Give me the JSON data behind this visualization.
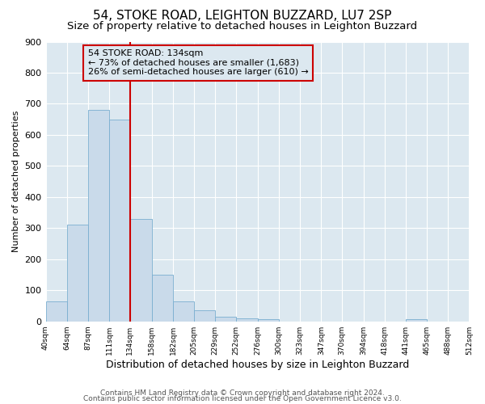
{
  "title": "54, STOKE ROAD, LEIGHTON BUZZARD, LU7 2SP",
  "subtitle": "Size of property relative to detached houses in Leighton Buzzard",
  "xlabel": "Distribution of detached houses by size in Leighton Buzzard",
  "ylabel": "Number of detached properties",
  "bin_edges": [
    40,
    64,
    87,
    111,
    134,
    158,
    182,
    205,
    229,
    252,
    276,
    300,
    323,
    347,
    370,
    394,
    418,
    441,
    465,
    488,
    512
  ],
  "bar_heights": [
    63,
    310,
    680,
    650,
    330,
    150,
    63,
    35,
    15,
    10,
    8,
    0,
    0,
    0,
    0,
    0,
    0,
    8,
    0,
    0
  ],
  "bar_color": "#c9daea",
  "bar_edgecolor": "#7aaed0",
  "property_line_x": 134,
  "property_line_color": "#cc0000",
  "ylim": [
    0,
    900
  ],
  "yticks": [
    0,
    100,
    200,
    300,
    400,
    500,
    600,
    700,
    800,
    900
  ],
  "annotation_box_text": "54 STOKE ROAD: 134sqm\n← 73% of detached houses are smaller (1,683)\n26% of semi-detached houses are larger (610) →",
  "annotation_box_color": "#cc0000",
  "background_color": "#ffffff",
  "plot_bg_color": "#dce8f0",
  "footer_line1": "Contains HM Land Registry data © Crown copyright and database right 2024.",
  "footer_line2": "Contains public sector information licensed under the Open Government Licence v3.0.",
  "title_fontsize": 11,
  "subtitle_fontsize": 9.5,
  "annotation_fontsize": 8,
  "footer_fontsize": 6.5,
  "ylabel_fontsize": 8,
  "xlabel_fontsize": 9
}
